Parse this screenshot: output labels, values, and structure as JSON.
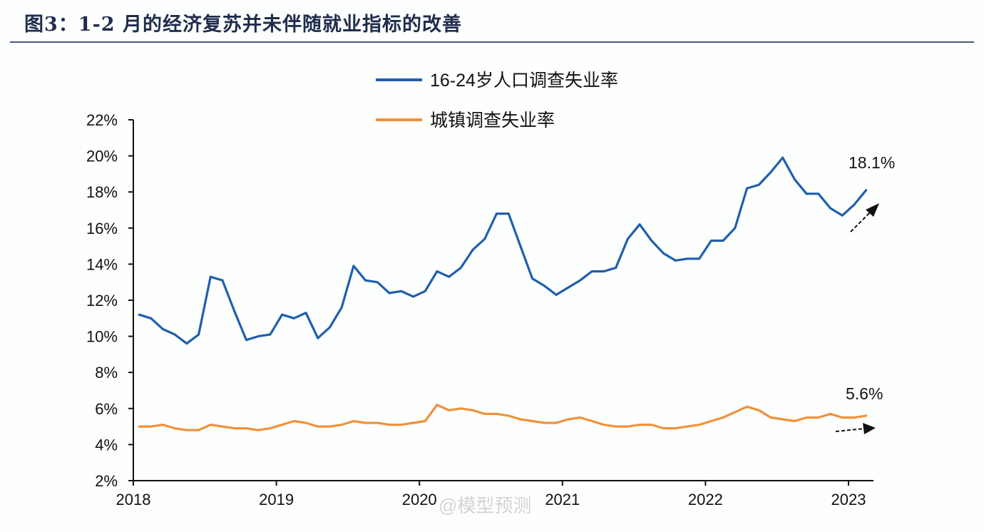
{
  "title": "图3：1-2 月的经济复苏并未伴随就业指标的改善",
  "watermark": "@模型预测",
  "chart_data": {
    "type": "line",
    "title": "图3：1-2 月的经济复苏并未伴随就业指标的改善",
    "xlabel": "",
    "ylabel": "",
    "x_start": "2018-01",
    "x_end": "2023-02",
    "x_frequency": "monthly",
    "xticks": [
      "2018",
      "2019",
      "2020",
      "2021",
      "2022",
      "2023"
    ],
    "yticks": [
      "2%",
      "4%",
      "6%",
      "8%",
      "10%",
      "12%",
      "14%",
      "16%",
      "18%",
      "20%",
      "22%"
    ],
    "ylim": [
      2,
      22
    ],
    "grid": false,
    "legend_placement": "top-center",
    "series": [
      {
        "name": "16-24岁人口调查失业率",
        "color": "#1f5fad",
        "values": [
          11.2,
          11.0,
          10.4,
          10.1,
          9.6,
          10.1,
          13.3,
          13.1,
          11.4,
          9.8,
          10.0,
          10.1,
          11.2,
          11.0,
          11.3,
          9.9,
          10.5,
          11.6,
          13.9,
          13.1,
          13.0,
          12.4,
          12.5,
          12.2,
          12.5,
          13.6,
          13.3,
          13.8,
          14.8,
          15.4,
          16.8,
          16.8,
          15.0,
          13.2,
          12.8,
          12.3,
          12.7,
          13.1,
          13.6,
          13.6,
          13.8,
          15.4,
          16.2,
          15.3,
          14.6,
          14.2,
          14.3,
          14.3,
          15.3,
          15.3,
          16.0,
          18.2,
          18.4,
          19.1,
          19.9,
          18.7,
          17.9,
          17.9,
          17.1,
          16.7,
          17.3,
          18.1
        ]
      },
      {
        "name": "城镇调查失业率",
        "color": "#f0913a",
        "values": [
          5.0,
          5.0,
          5.1,
          4.9,
          4.8,
          4.8,
          5.1,
          5.0,
          4.9,
          4.9,
          4.8,
          4.9,
          5.1,
          5.3,
          5.2,
          5.0,
          5.0,
          5.1,
          5.3,
          5.2,
          5.2,
          5.1,
          5.1,
          5.2,
          5.3,
          6.2,
          5.9,
          6.0,
          5.9,
          5.7,
          5.7,
          5.6,
          5.4,
          5.3,
          5.2,
          5.2,
          5.4,
          5.5,
          5.3,
          5.1,
          5.0,
          5.0,
          5.1,
          5.1,
          4.9,
          4.9,
          5.0,
          5.1,
          5.3,
          5.5,
          5.8,
          6.1,
          5.9,
          5.5,
          5.4,
          5.3,
          5.5,
          5.5,
          5.7,
          5.5,
          5.5,
          5.6
        ]
      }
    ],
    "annotations": [
      {
        "text": "18.1%",
        "series": "16-24岁人口调查失业率",
        "note_arrow": "up"
      },
      {
        "text": "5.6%",
        "series": "城镇调查失业率",
        "note_arrow": "flat"
      }
    ]
  }
}
